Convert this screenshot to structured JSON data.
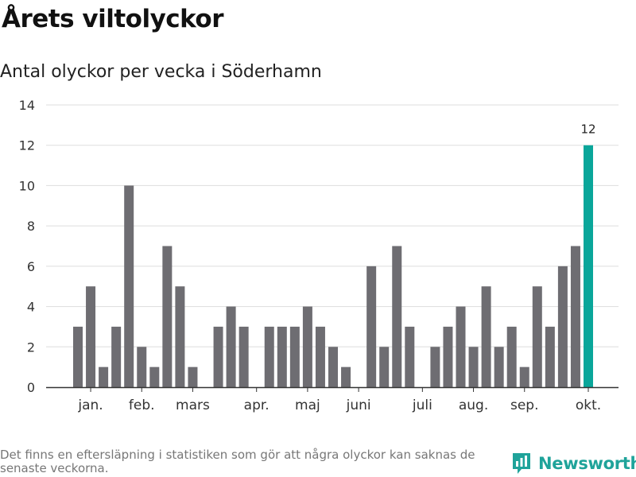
{
  "title": "Årets viltolyckor",
  "subtitle": "Antal olyckor per vecka i Söderhamn",
  "footnote": "Det finns en eftersläpning i statistiken som gör att några olyckor kan saknas de senaste veckorna.",
  "brand": {
    "name": "Newsworthy",
    "logo_icon": "bar-chart-speech-bubble-icon",
    "color": "#1fa39a"
  },
  "colors": {
    "bar": "#6e6d72",
    "highlight": "#0aa69a",
    "grid": "#dddddd",
    "axis": "#333333"
  },
  "chart_data": {
    "type": "bar",
    "ylim": [
      0,
      14
    ],
    "yticks": [
      0,
      2,
      4,
      6,
      8,
      10,
      12,
      14
    ],
    "grid": true,
    "month_labels": [
      {
        "label": "jan.",
        "x": 1
      },
      {
        "label": "feb.",
        "x": 5
      },
      {
        "label": "mars",
        "x": 9
      },
      {
        "label": "apr.",
        "x": 14
      },
      {
        "label": "maj",
        "x": 18
      },
      {
        "label": "juni",
        "x": 22
      },
      {
        "label": "juli",
        "x": 27
      },
      {
        "label": "aug.",
        "x": 31
      },
      {
        "label": "sep.",
        "x": 35
      },
      {
        "label": "okt.",
        "x": 40
      }
    ],
    "weeks": [
      1,
      2,
      3,
      4,
      5,
      6,
      7,
      8,
      9,
      10,
      11,
      12,
      13,
      14,
      15,
      16,
      17,
      18,
      19,
      20,
      21,
      22,
      23,
      24,
      25,
      26,
      27,
      28,
      29,
      30,
      31,
      32,
      33,
      34,
      35,
      36,
      37,
      38,
      39,
      40,
      41
    ],
    "values": [
      3,
      5,
      1,
      3,
      10,
      2,
      1,
      7,
      5,
      1,
      0,
      3,
      4,
      3,
      0,
      3,
      3,
      3,
      4,
      3,
      2,
      1,
      0,
      6,
      2,
      7,
      3,
      0,
      2,
      3,
      4,
      2,
      5,
      2,
      3,
      1,
      5,
      3,
      6,
      7,
      12
    ],
    "highlight_index": 40,
    "highlight_label": "12"
  }
}
